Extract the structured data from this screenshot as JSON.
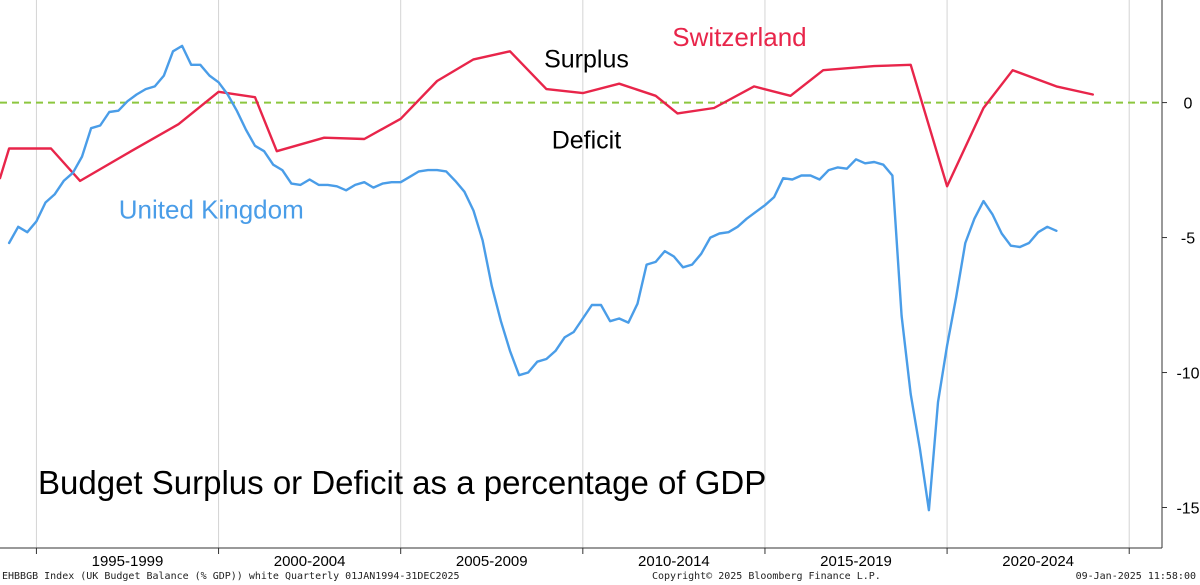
{
  "chart_data": {
    "type": "line",
    "title": "Budget Surplus or Deficit as a percentage of GDP",
    "xlabel": "",
    "ylabel": "",
    "xlim": [
      1994.0,
      2025.9
    ],
    "ylim": [
      -16.5,
      3.8
    ],
    "yticks": [
      0,
      -5,
      -10,
      -15
    ],
    "ytick_labels": [
      "0",
      "-5",
      "-10",
      "-15"
    ],
    "x_periods": [
      {
        "label": "1995-1999",
        "start": 1995,
        "end": 2000
      },
      {
        "label": "2000-2004",
        "start": 2000,
        "end": 2005
      },
      {
        "label": "2005-2009",
        "start": 2005,
        "end": 2010
      },
      {
        "label": "2010-2014",
        "start": 2010,
        "end": 2015
      },
      {
        "label": "2015-2019",
        "start": 2015,
        "end": 2020
      },
      {
        "label": "2020-2024",
        "start": 2020,
        "end": 2025
      }
    ],
    "zero_line": {
      "value": 0,
      "color": "#8cc63f",
      "style": "dashed"
    },
    "annotations": [
      {
        "text": "Surplus",
        "x": 2010.1,
        "y": 1.3
      },
      {
        "text": "Deficit",
        "x": 2010.1,
        "y": -1.7
      }
    ],
    "series": [
      {
        "name": "Switzerland",
        "color": "#e8254a",
        "label_position": {
          "x": 2014.3,
          "y": 2.1
        },
        "points": [
          [
            1994.0,
            -2.8
          ],
          [
            1994.25,
            -1.7
          ],
          [
            1995.4,
            -1.7
          ],
          [
            1996.2,
            -2.9
          ],
          [
            1997.6,
            -1.8
          ],
          [
            1998.9,
            -0.8
          ],
          [
            2000.0,
            0.4
          ],
          [
            2001.0,
            0.2
          ],
          [
            2001.6,
            -1.8
          ],
          [
            2002.9,
            -1.3
          ],
          [
            2004.0,
            -1.35
          ],
          [
            2005.0,
            -0.6
          ],
          [
            2006.0,
            0.8
          ],
          [
            2007.0,
            1.6
          ],
          [
            2008.0,
            1.9
          ],
          [
            2009.0,
            0.5
          ],
          [
            2010.0,
            0.35
          ],
          [
            2011.0,
            0.7
          ],
          [
            2012.0,
            0.25
          ],
          [
            2012.6,
            -0.4
          ],
          [
            2013.6,
            -0.2
          ],
          [
            2014.7,
            0.6
          ],
          [
            2015.7,
            0.25
          ],
          [
            2016.6,
            1.2
          ],
          [
            2018.0,
            1.35
          ],
          [
            2019.0,
            1.4
          ],
          [
            2020.0,
            -3.1
          ],
          [
            2021.0,
            -0.2
          ],
          [
            2021.8,
            1.2
          ],
          [
            2023.0,
            0.6
          ],
          [
            2024.0,
            0.3
          ]
        ]
      },
      {
        "name": "United Kingdom",
        "color": "#4a9de8",
        "label_position": {
          "x": 1999.8,
          "y": -4.3
        },
        "points": [
          [
            1994.25,
            -5.2
          ],
          [
            1994.5,
            -4.6
          ],
          [
            1994.75,
            -4.8
          ],
          [
            1995.0,
            -4.4
          ],
          [
            1995.25,
            -3.7
          ],
          [
            1995.5,
            -3.4
          ],
          [
            1995.75,
            -2.9
          ],
          [
            1996.0,
            -2.6
          ],
          [
            1996.25,
            -2.0
          ],
          [
            1996.5,
            -0.95
          ],
          [
            1996.75,
            -0.85
          ],
          [
            1997.0,
            -0.35
          ],
          [
            1997.25,
            -0.3
          ],
          [
            1997.5,
            0.05
          ],
          [
            1997.75,
            0.3
          ],
          [
            1998.0,
            0.5
          ],
          [
            1998.25,
            0.6
          ],
          [
            1998.5,
            1.0
          ],
          [
            1998.75,
            1.9
          ],
          [
            1999.0,
            2.1
          ],
          [
            1999.25,
            1.4
          ],
          [
            1999.5,
            1.4
          ],
          [
            1999.75,
            1.0
          ],
          [
            2000.0,
            0.75
          ],
          [
            2000.25,
            0.3
          ],
          [
            2000.5,
            -0.3
          ],
          [
            2000.75,
            -1.0
          ],
          [
            2001.0,
            -1.6
          ],
          [
            2001.25,
            -1.8
          ],
          [
            2001.5,
            -2.3
          ],
          [
            2001.75,
            -2.5
          ],
          [
            2002.0,
            -3.0
          ],
          [
            2002.25,
            -3.05
          ],
          [
            2002.5,
            -2.85
          ],
          [
            2002.75,
            -3.05
          ],
          [
            2003.0,
            -3.05
          ],
          [
            2003.25,
            -3.1
          ],
          [
            2003.5,
            -3.25
          ],
          [
            2003.75,
            -3.05
          ],
          [
            2004.0,
            -2.95
          ],
          [
            2004.25,
            -3.15
          ],
          [
            2004.5,
            -3.0
          ],
          [
            2004.75,
            -2.95
          ],
          [
            2005.0,
            -2.95
          ],
          [
            2005.25,
            -2.75
          ],
          [
            2005.5,
            -2.55
          ],
          [
            2005.75,
            -2.5
          ],
          [
            2006.0,
            -2.5
          ],
          [
            2006.25,
            -2.55
          ],
          [
            2006.5,
            -2.9
          ],
          [
            2006.75,
            -3.3
          ],
          [
            2007.0,
            -4.0
          ],
          [
            2007.25,
            -5.1
          ],
          [
            2007.5,
            -6.8
          ],
          [
            2007.75,
            -8.1
          ],
          [
            2008.0,
            -9.2
          ],
          [
            2008.25,
            -10.1
          ],
          [
            2008.5,
            -10.0
          ],
          [
            2008.75,
            -9.6
          ],
          [
            2009.0,
            -9.5
          ],
          [
            2009.25,
            -9.2
          ],
          [
            2009.5,
            -8.7
          ],
          [
            2009.75,
            -8.5
          ],
          [
            2010.0,
            -8.0
          ],
          [
            2010.25,
            -7.5
          ],
          [
            2010.5,
            -7.5
          ],
          [
            2010.75,
            -8.1
          ],
          [
            2011.0,
            -8.0
          ],
          [
            2011.25,
            -8.15
          ],
          [
            2011.5,
            -7.45
          ],
          [
            2011.75,
            -6.0
          ],
          [
            2012.0,
            -5.9
          ],
          [
            2012.25,
            -5.5
          ],
          [
            2012.5,
            -5.7
          ],
          [
            2012.75,
            -6.1
          ],
          [
            2013.0,
            -6.0
          ],
          [
            2013.25,
            -5.6
          ],
          [
            2013.5,
            -5.0
          ],
          [
            2013.75,
            -4.85
          ],
          [
            2014.0,
            -4.8
          ],
          [
            2014.25,
            -4.6
          ],
          [
            2014.5,
            -4.3
          ],
          [
            2014.75,
            -4.05
          ],
          [
            2015.0,
            -3.8
          ],
          [
            2015.25,
            -3.5
          ],
          [
            2015.5,
            -2.8
          ],
          [
            2015.75,
            -2.85
          ],
          [
            2016.0,
            -2.7
          ],
          [
            2016.25,
            -2.7
          ],
          [
            2016.5,
            -2.85
          ],
          [
            2016.75,
            -2.5
          ],
          [
            2017.0,
            -2.4
          ],
          [
            2017.25,
            -2.45
          ],
          [
            2017.5,
            -2.1
          ],
          [
            2017.75,
            -2.25
          ],
          [
            2018.0,
            -2.2
          ],
          [
            2018.25,
            -2.3
          ],
          [
            2018.5,
            -2.7
          ],
          [
            2018.75,
            -7.9
          ],
          [
            2019.0,
            -10.8
          ],
          [
            2019.25,
            -12.8
          ],
          [
            2019.5,
            -15.1
          ],
          [
            2019.75,
            -11.1
          ],
          [
            2020.0,
            -9.0
          ],
          [
            2020.25,
            -7.2
          ],
          [
            2020.5,
            -5.2
          ],
          [
            2020.75,
            -4.3
          ],
          [
            2021.0,
            -3.65
          ],
          [
            2021.25,
            -4.15
          ],
          [
            2021.5,
            -4.85
          ],
          [
            2021.75,
            -5.3
          ],
          [
            2022.0,
            -5.35
          ],
          [
            2022.25,
            -5.2
          ],
          [
            2022.5,
            -4.8
          ],
          [
            2022.75,
            -4.6
          ],
          [
            2023.0,
            -4.75
          ]
        ]
      }
    ]
  },
  "footer": {
    "left": "EHBBGB Index (UK Budget Balance (% GDP)) white  Quarterly 01JAN1994-31DEC2025",
    "center": "Copyright© 2025 Bloomberg Finance L.P.",
    "right": "09-Jan-2025 11:58:00"
  }
}
